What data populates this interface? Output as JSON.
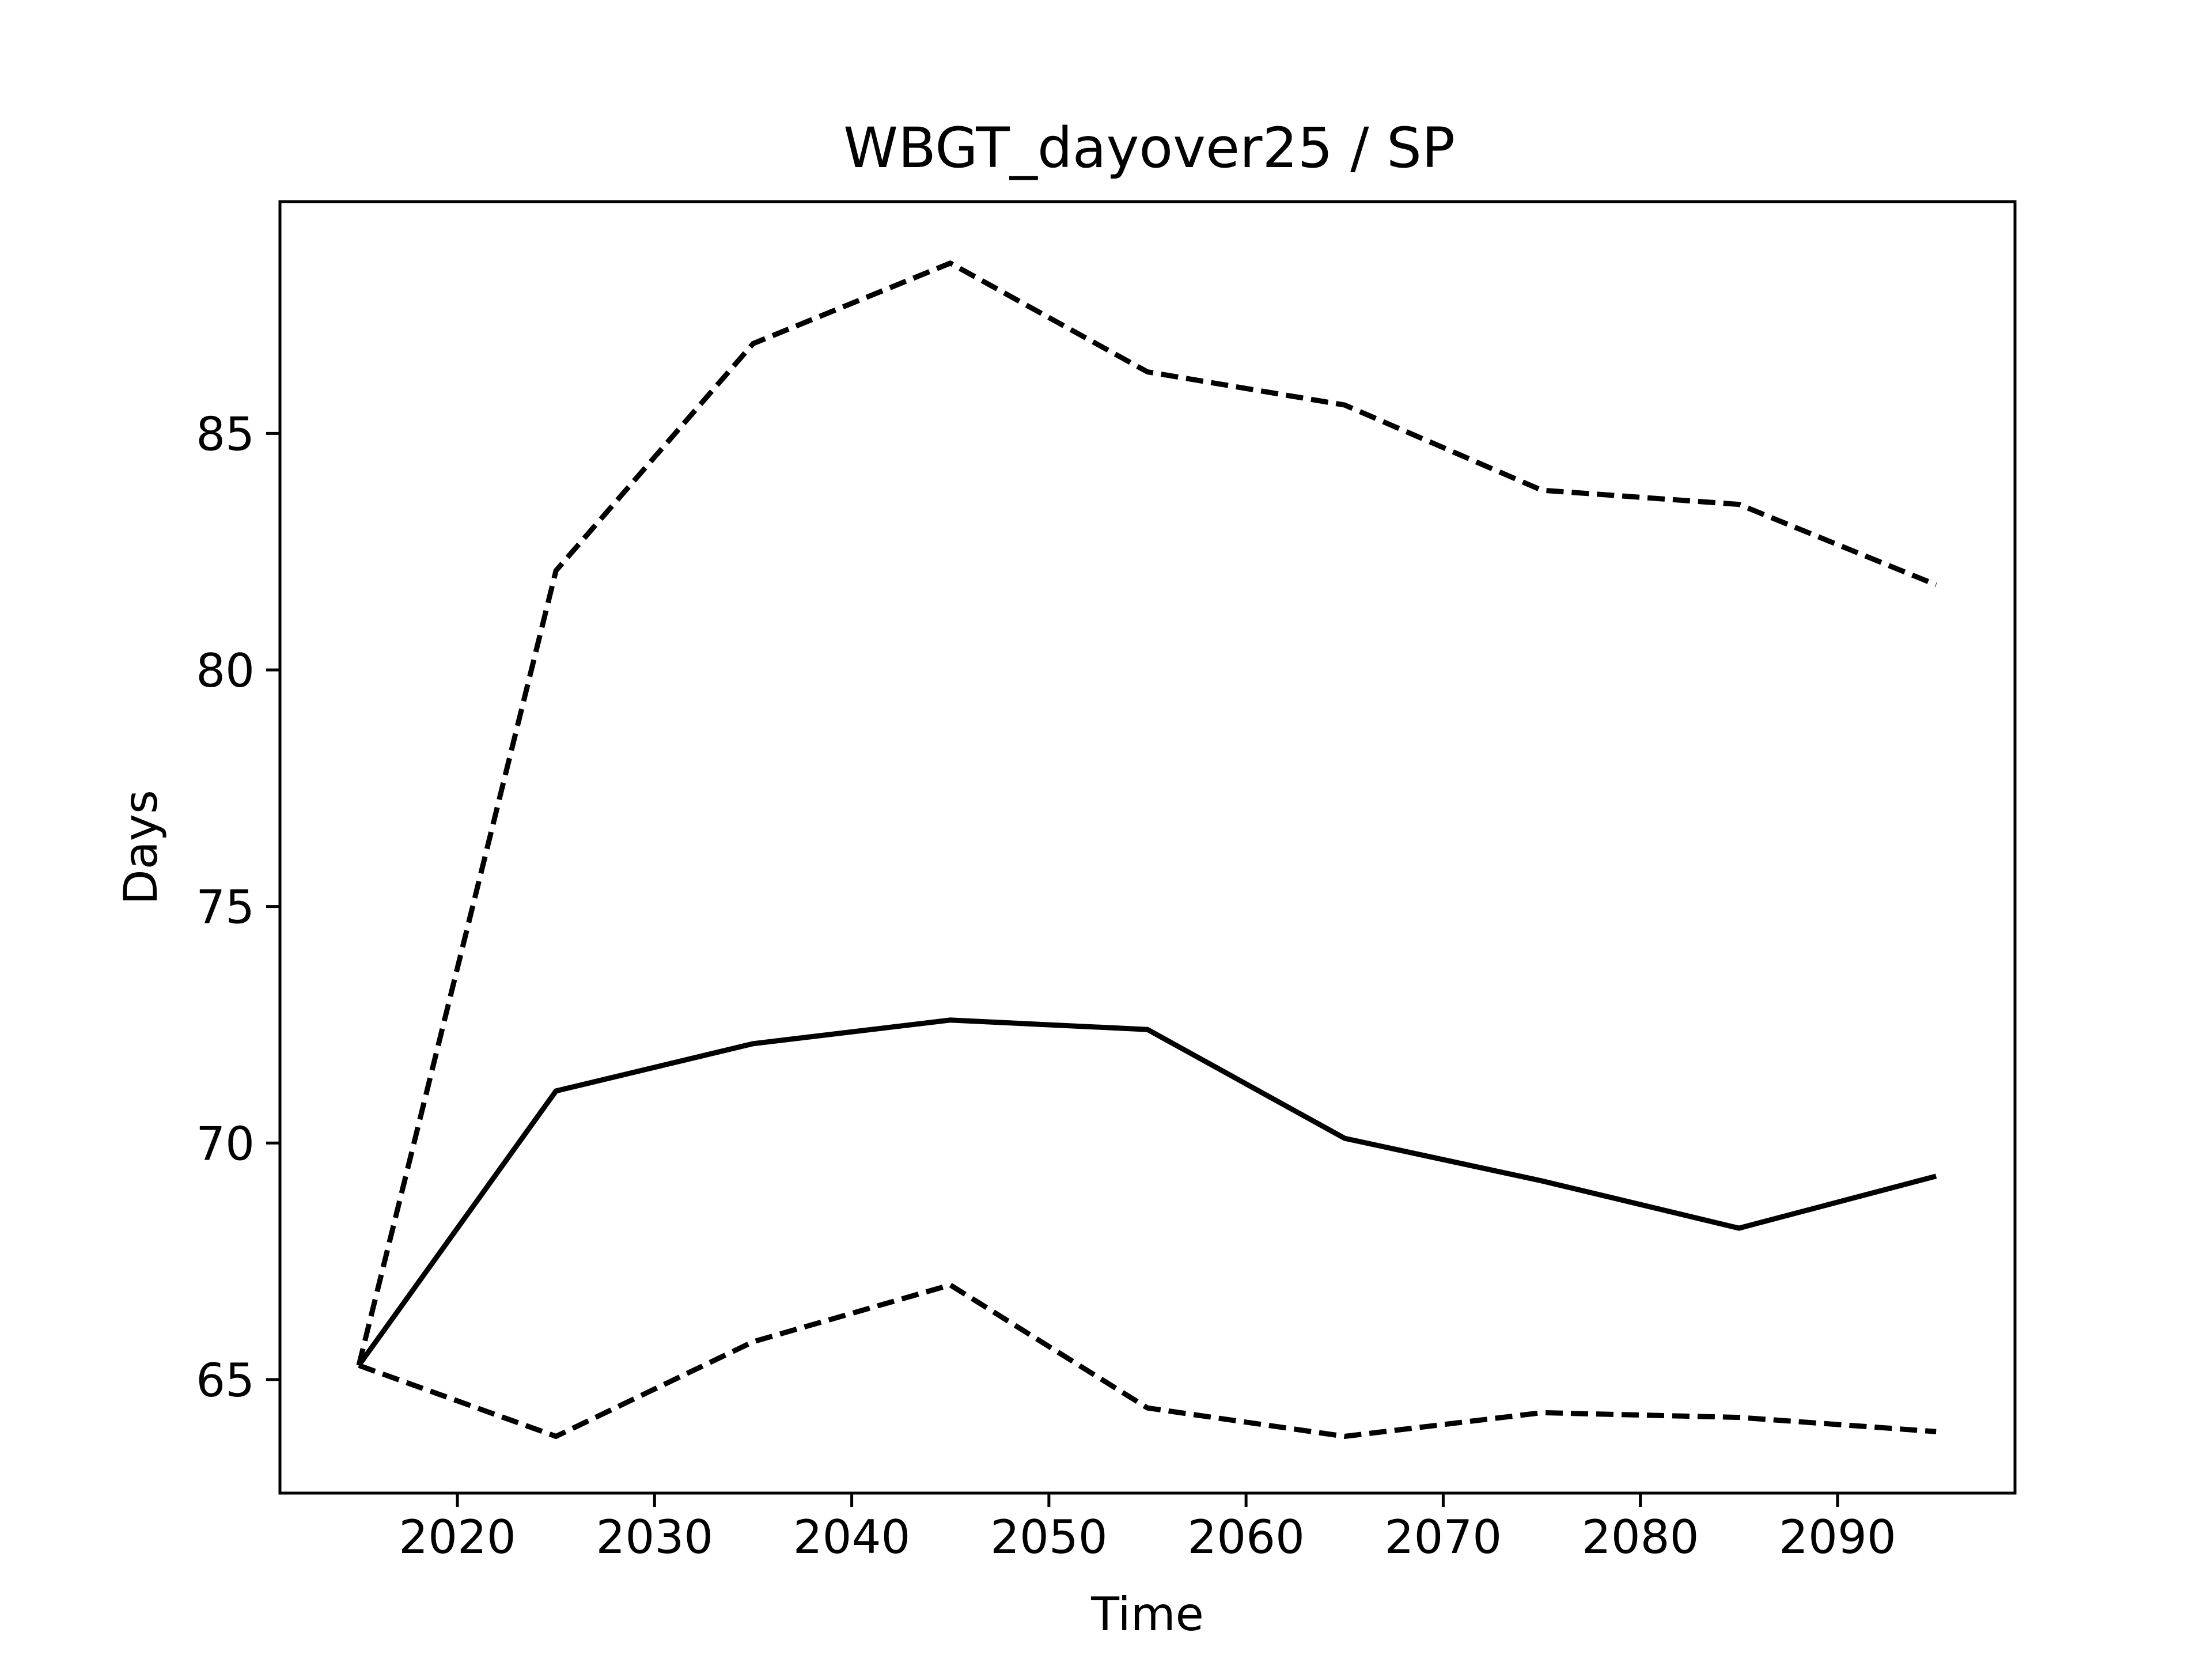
{
  "chart_data": {
    "type": "line",
    "title": "WBGT_dayover25 / SP",
    "xlabel": "Time",
    "ylabel": "Days",
    "xlim": [
      2011,
      2099
    ],
    "ylim": [
      62.6,
      89.9
    ],
    "x_ticks": [
      2020,
      2030,
      2040,
      2050,
      2060,
      2070,
      2080,
      2090
    ],
    "y_ticks": [
      65,
      70,
      75,
      80,
      85
    ],
    "grid": false,
    "legend": "none",
    "x": [
      2015,
      2025,
      2035,
      2045,
      2055,
      2065,
      2075,
      2085,
      2095
    ],
    "series": [
      {
        "style": "solid",
        "color": "#000000",
        "values": [
          65.3,
          71.1,
          72.1,
          72.6,
          72.4,
          70.1,
          69.2,
          68.2,
          69.3
        ]
      },
      {
        "style": "dashed",
        "color": "#000000",
        "values": [
          65.3,
          82.1,
          86.9,
          88.6,
          86.3,
          85.6,
          83.8,
          83.5,
          81.8
        ]
      },
      {
        "style": "dashed",
        "color": "#000000",
        "values": [
          65.3,
          63.8,
          65.8,
          67.0,
          64.4,
          63.8,
          64.3,
          64.2,
          63.9
        ]
      }
    ]
  }
}
